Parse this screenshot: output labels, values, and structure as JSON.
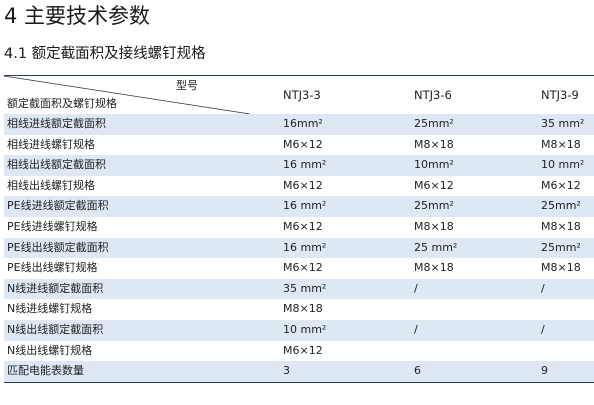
{
  "section_title": "4 主要技术参数",
  "subsection_title": "4.1 额定截面积及接线螺钉规格",
  "table": {
    "header": {
      "type_label": "型号",
      "spec_label": "额定截面积及螺钉规格",
      "models": [
        "NTJ3-3",
        "NTJ3-6",
        "NTJ3-9"
      ]
    },
    "rows": [
      {
        "label": "相线进线额定截面积",
        "values": [
          "16mm²",
          "25mm²",
          "35 mm²"
        ]
      },
      {
        "label": "相线进线螺钉规格",
        "values": [
          "M6×12",
          "M8×18",
          "M8×18"
        ]
      },
      {
        "label": "相线出线额定截面积",
        "values": [
          "16 mm²",
          "10mm²",
          "10 mm²"
        ]
      },
      {
        "label": "相线出线螺钉规格",
        "values": [
          "M6×12",
          "M6×12",
          "M6×12"
        ]
      },
      {
        "label": "PE线进线额定截面积",
        "values": [
          "16 mm²",
          "25mm²",
          "25mm²"
        ]
      },
      {
        "label": "PE线进线螺钉规格",
        "values": [
          "M6×12",
          "M8×18",
          "M8×18"
        ]
      },
      {
        "label": "PE线出线额定截面积",
        "values": [
          "16 mm²",
          "25 mm²",
          "25mm²"
        ]
      },
      {
        "label": "PE线出线螺钉规格",
        "values": [
          "M6×12",
          "M8×18",
          "M8×18"
        ]
      },
      {
        "label": "N线进线额定截面积",
        "values": [
          "35 mm²",
          "/",
          "/"
        ]
      },
      {
        "label": "N线进线螺钉规格",
        "values": [
          "M8×18",
          "",
          ""
        ]
      },
      {
        "label": "N线出线额定截面积",
        "values": [
          "10 mm²",
          "/",
          "/"
        ]
      },
      {
        "label": "N线出线螺钉规格",
        "values": [
          "M6×12",
          "",
          ""
        ]
      },
      {
        "label": "匹配电能表数量",
        "values": [
          "3",
          "6",
          "9"
        ]
      }
    ]
  }
}
